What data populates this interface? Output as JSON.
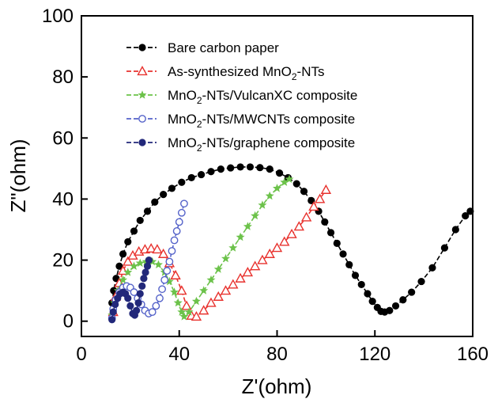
{
  "chart_data": {
    "type": "scatter",
    "title": "",
    "xlabel": "Z'(ohm)",
    "ylabel": "Z\"(ohm)",
    "xlim": [
      0,
      160
    ],
    "ylim": [
      -5,
      100
    ],
    "xticks": [
      "0",
      "40",
      "80",
      "120",
      "160"
    ],
    "yticks": [
      "0",
      "20",
      "40",
      "60",
      "80",
      "100"
    ],
    "grid": false,
    "legend_position": "top-left",
    "series": [
      {
        "name": "Bare carbon paper",
        "color": "#000000",
        "marker": "filled-circle",
        "x": [
          12.5,
          13.2,
          14.2,
          15.5,
          17.0,
          19.0,
          21.5,
          24.0,
          27.0,
          30.0,
          33.5,
          37.0,
          41.0,
          45.0,
          49.0,
          53.0,
          57.0,
          61.0,
          65.0,
          69.0,
          73.0,
          77.0,
          81.0,
          84.5,
          88.0,
          91.0,
          94.0,
          97.0,
          99.5,
          102.0,
          104.5,
          107.0,
          109.5,
          112.0,
          114.5,
          117.0,
          119.0,
          121.0,
          122.5,
          124.0,
          126.0,
          128.5,
          131.5,
          135.0,
          139.0,
          143.5,
          148.5,
          153.0,
          157.0,
          159.0
        ],
        "y": [
          6.0,
          10.0,
          14.0,
          18.0,
          22.0,
          26.0,
          29.5,
          33.0,
          36.0,
          39.0,
          41.5,
          43.5,
          45.5,
          47.0,
          48.0,
          49.0,
          49.8,
          50.2,
          50.5,
          50.5,
          50.3,
          49.8,
          48.5,
          47.0,
          45.0,
          42.5,
          39.5,
          36.0,
          32.5,
          29.0,
          25.5,
          22.0,
          18.5,
          15.0,
          12.0,
          9.0,
          6.5,
          4.5,
          3.2,
          3.0,
          3.5,
          5.0,
          7.0,
          9.5,
          13.0,
          17.5,
          24.0,
          30.0,
          34.5,
          36.0
        ]
      },
      {
        "name": "As-synthesized MnO2-NTs",
        "color": "#e8322e",
        "marker": "open-triangle",
        "x": [
          13.0,
          14.0,
          15.5,
          17.0,
          19.0,
          21.0,
          23.5,
          26.0,
          28.5,
          31.0,
          33.5,
          36.0,
          38.5,
          41.0,
          43.0,
          45.0,
          47.0,
          50.0,
          53.0,
          56.0,
          59.0,
          62.0,
          65.0,
          68.0,
          71.0,
          74.0,
          77.0,
          80.0,
          83.0,
          86.0,
          89.0,
          92.0,
          95.0,
          97.5,
          100.0
        ],
        "y": [
          3.0,
          8.0,
          12.5,
          16.5,
          19.5,
          21.5,
          22.8,
          23.5,
          23.8,
          23.5,
          22.0,
          19.0,
          15.0,
          10.0,
          5.0,
          1.8,
          1.5,
          3.5,
          6.0,
          8.0,
          10.0,
          12.0,
          14.0,
          16.0,
          18.0,
          20.0,
          22.0,
          24.0,
          26.0,
          28.5,
          31.0,
          34.0,
          37.5,
          40.0,
          43.0
        ]
      },
      {
        "name": "MnO2-NTs/VulcanXC composite",
        "color": "#6cc24a",
        "marker": "star",
        "x": [
          12.5,
          13.5,
          15.0,
          17.0,
          19.0,
          21.5,
          24.0,
          26.5,
          29.0,
          31.5,
          34.0,
          36.0,
          38.0,
          39.5,
          41.0,
          42.0,
          44.0,
          47.0,
          50.0,
          53.0,
          56.0,
          59.0,
          62.0,
          65.0,
          68.0,
          71.0,
          74.0,
          77.0,
          80.0,
          83.0,
          85.0
        ],
        "y": [
          2.0,
          6.0,
          10.0,
          13.5,
          16.0,
          18.0,
          19.0,
          19.5,
          19.5,
          18.5,
          16.0,
          13.0,
          9.5,
          6.0,
          3.0,
          1.5,
          3.0,
          6.5,
          10.0,
          13.5,
          17.0,
          20.5,
          24.0,
          27.5,
          31.0,
          34.5,
          38.0,
          41.0,
          43.5,
          45.5,
          46.5
        ]
      },
      {
        "name": "MnO2-NTs/MWCNTs composite",
        "color": "#5462c9",
        "marker": "open-circle",
        "x": [
          12.5,
          13.0,
          14.0,
          15.5,
          17.0,
          18.5,
          20.0,
          21.5,
          23.0,
          24.5,
          26.0,
          27.5,
          29.0,
          30.5,
          32.0,
          33.0,
          34.0,
          35.0,
          36.0,
          37.0,
          38.0,
          39.0,
          40.0,
          41.0,
          42.0
        ],
        "y": [
          1.0,
          4.0,
          7.0,
          9.5,
          11.0,
          11.5,
          11.0,
          9.5,
          7.5,
          5.5,
          3.5,
          2.5,
          3.0,
          5.0,
          7.5,
          10.5,
          13.5,
          16.5,
          19.5,
          23.0,
          26.5,
          29.5,
          32.5,
          35.5,
          38.5
        ]
      },
      {
        "name": "MnO2-NTs/graphene composite",
        "color": "#22287a",
        "marker": "filled-circle",
        "x": [
          12.5,
          13.0,
          13.8,
          14.8,
          15.8,
          17.0,
          18.0,
          19.0,
          20.0,
          21.0,
          21.8,
          22.5,
          23.3,
          24.0,
          24.8,
          25.5,
          26.2,
          27.0,
          27.6
        ],
        "y": [
          0.5,
          3.0,
          5.5,
          7.5,
          9.0,
          9.5,
          9.0,
          7.5,
          5.0,
          2.5,
          2.0,
          3.5,
          6.0,
          9.0,
          11.5,
          14.0,
          16.0,
          18.0,
          20.0
        ]
      }
    ]
  },
  "legend": {
    "items": [
      {
        "pre": "Bare carbon paper",
        "sub": "",
        "post": ""
      },
      {
        "pre": "As-synthesized MnO",
        "sub": "2",
        "post": "-NTs"
      },
      {
        "pre": "MnO",
        "sub": "2",
        "post": "-NTs/VulcanXC composite"
      },
      {
        "pre": "MnO",
        "sub": "2",
        "post": "-NTs/MWCNTs composite"
      },
      {
        "pre": "MnO",
        "sub": "2",
        "post": "-NTs/graphene composite"
      }
    ]
  }
}
